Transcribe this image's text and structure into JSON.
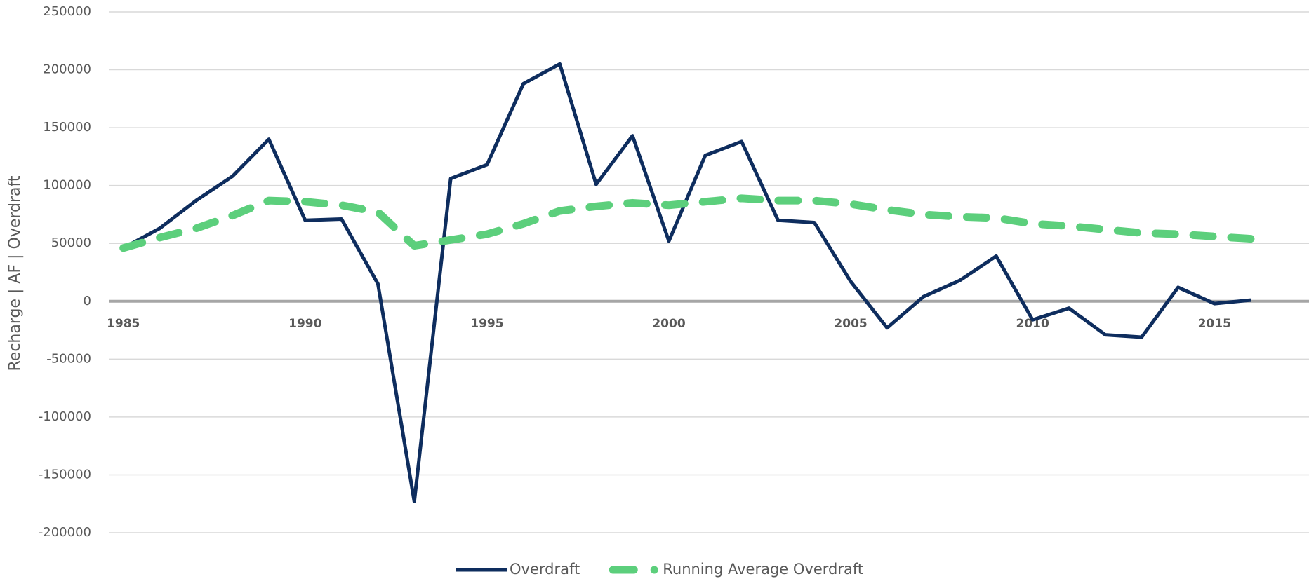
{
  "chart_data": {
    "type": "line",
    "y_label": "Recharge | AF | Overdraft",
    "x": [
      1985,
      1986,
      1987,
      1988,
      1989,
      1990,
      1991,
      1992,
      1993,
      1994,
      1995,
      1996,
      1997,
      1998,
      1999,
      2000,
      2001,
      2002,
      2003,
      2004,
      2005,
      2006,
      2007,
      2008,
      2009,
      2010,
      2011,
      2012,
      2013,
      2014,
      2015,
      2016
    ],
    "series": [
      {
        "name": "Overdraft",
        "color": "#0e2d5e",
        "dash": false,
        "values": [
          46000,
          63000,
          87000,
          108000,
          140000,
          70000,
          71000,
          15000,
          -173000,
          106000,
          118000,
          188000,
          205000,
          101000,
          143000,
          52000,
          126000,
          138000,
          70000,
          68000,
          17000,
          -23000,
          4000,
          18000,
          39000,
          -16000,
          -6000,
          -29000,
          -31000,
          12000,
          -2000,
          1000
        ]
      },
      {
        "name": "Running Average Overdraft",
        "color": "#5ccf7c",
        "dash": true,
        "values": [
          46000,
          55000,
          63000,
          74000,
          87000,
          86000,
          83000,
          77000,
          48000,
          53000,
          58000,
          67000,
          78000,
          82000,
          85000,
          83000,
          86000,
          89000,
          87000,
          87000,
          84000,
          79000,
          75000,
          73000,
          72000,
          67000,
          65000,
          62000,
          59000,
          58000,
          56000,
          54000
        ]
      }
    ],
    "xlim": [
      1984.6,
      2017.6
    ],
    "xticks": [
      1985,
      1990,
      1995,
      2000,
      2005,
      2010,
      2015
    ],
    "ylim": [
      -200000,
      250000
    ],
    "yticks": [
      -200000,
      -150000,
      -100000,
      -50000,
      0,
      50000,
      100000,
      150000,
      200000,
      250000
    ],
    "grid": true,
    "legend": "bottom"
  }
}
